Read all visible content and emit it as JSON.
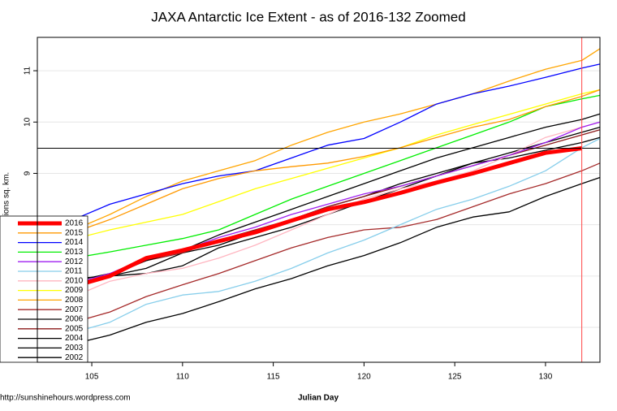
{
  "chart_data": {
    "type": "line",
    "title": "JAXA Antarctic Ice Extent - as of 2016-132 Zoomed",
    "xlabel": "Julian Day",
    "ylabel": "Millions sq. km.",
    "source": "http://sunshinehours.wordpress.com",
    "x": [
      102,
      104,
      106,
      108,
      110,
      112,
      114,
      116,
      118,
      120,
      122,
      124,
      126,
      128,
      130,
      132,
      133
    ],
    "xlim": [
      102,
      133
    ],
    "ylim": [
      5.32,
      11.65
    ],
    "xticks": [
      105,
      110,
      115,
      120,
      125,
      130
    ],
    "yticks": [
      6,
      7,
      8,
      9,
      10,
      11
    ],
    "grid": true,
    "legend": "bottom-left",
    "hline": 9.49,
    "vline": 132,
    "series": [
      {
        "name": "2016",
        "color": "#ff0000",
        "values": [
          6.54,
          6.8,
          7.0,
          7.35,
          7.5,
          7.68,
          7.85,
          8.08,
          8.3,
          8.44,
          8.62,
          8.82,
          9.0,
          9.2,
          9.4,
          9.49,
          null
        ]
      },
      {
        "name": "2015",
        "color": "#ff9900",
        "values": [
          7.7,
          7.85,
          8.1,
          8.4,
          8.7,
          8.9,
          9.05,
          9.13,
          9.2,
          9.33,
          9.5,
          9.7,
          9.9,
          10.05,
          10.3,
          10.5,
          10.63
        ]
      },
      {
        "name": "2014",
        "color": "#0000ff",
        "values": [
          7.87,
          8.1,
          8.4,
          8.6,
          8.8,
          8.95,
          9.05,
          9.3,
          9.55,
          9.68,
          10.0,
          10.35,
          10.55,
          10.7,
          10.87,
          11.05,
          11.13
        ]
      },
      {
        "name": "2013",
        "color": "#00ee00",
        "values": [
          7.15,
          7.35,
          7.47,
          7.6,
          7.73,
          7.9,
          8.2,
          8.5,
          8.75,
          9.0,
          9.25,
          9.5,
          9.75,
          10.0,
          10.3,
          10.45,
          10.52
        ]
      },
      {
        "name": "2012",
        "color": "#a020f0",
        "values": [
          6.55,
          6.85,
          7.05,
          7.35,
          7.5,
          7.75,
          7.95,
          8.2,
          8.4,
          8.6,
          8.75,
          8.95,
          9.15,
          9.35,
          9.6,
          9.9,
          10.0
        ]
      },
      {
        "name": "2011",
        "color": "#87ceeb",
        "values": [
          5.7,
          5.9,
          6.1,
          6.45,
          6.63,
          6.7,
          6.9,
          7.15,
          7.45,
          7.7,
          8.0,
          8.3,
          8.5,
          8.75,
          9.05,
          9.5,
          9.68
        ]
      },
      {
        "name": "2010",
        "color": "#ffb6c1",
        "values": [
          6.35,
          6.6,
          6.9,
          7.05,
          7.15,
          7.35,
          7.6,
          7.9,
          8.2,
          8.5,
          8.7,
          8.85,
          9.05,
          9.35,
          9.7,
          9.9,
          10.0
        ]
      },
      {
        "name": "2009",
        "color": "#ffff00",
        "values": [
          7.6,
          7.72,
          7.9,
          8.05,
          8.2,
          8.45,
          8.7,
          8.9,
          9.1,
          9.3,
          9.5,
          9.75,
          9.95,
          10.15,
          10.35,
          10.55,
          10.63
        ]
      },
      {
        "name": "2008",
        "color": "#ffa500",
        "values": [
          7.78,
          7.9,
          8.2,
          8.55,
          8.85,
          9.05,
          9.25,
          9.55,
          9.8,
          10.0,
          10.16,
          10.35,
          10.55,
          10.8,
          11.03,
          11.2,
          11.43
        ]
      },
      {
        "name": "2007",
        "color": "#a52a2a",
        "values": [
          5.95,
          6.1,
          6.3,
          6.6,
          6.83,
          7.05,
          7.3,
          7.55,
          7.75,
          7.9,
          7.95,
          8.1,
          8.35,
          8.6,
          8.8,
          9.05,
          9.2
        ]
      },
      {
        "name": "2006",
        "color": "#000000",
        "values": [
          6.75,
          6.9,
          7.05,
          7.3,
          7.5,
          7.8,
          8.05,
          8.3,
          8.55,
          8.8,
          9.05,
          9.3,
          9.5,
          9.7,
          9.9,
          10.05,
          10.16
        ]
      },
      {
        "name": "2005",
        "color": "#8b1a1a",
        "values": [
          6.6,
          6.85,
          7.0,
          7.3,
          7.45,
          7.7,
          7.9,
          8.1,
          8.35,
          8.55,
          8.75,
          8.95,
          9.15,
          9.35,
          9.55,
          9.75,
          9.85
        ]
      },
      {
        "name": "2004",
        "color": "#000000",
        "values": [
          6.7,
          6.85,
          7.0,
          7.05,
          7.2,
          7.55,
          7.75,
          7.95,
          8.2,
          8.45,
          8.7,
          8.95,
          9.2,
          9.4,
          9.6,
          9.8,
          9.9
        ]
      },
      {
        "name": "2003",
        "color": "#000000",
        "values": [
          6.85,
          6.95,
          7.0,
          7.15,
          7.45,
          7.6,
          7.85,
          8.1,
          8.35,
          8.55,
          8.8,
          9.0,
          9.2,
          9.3,
          9.45,
          9.6,
          9.7
        ]
      },
      {
        "name": "2002",
        "color": "#000000",
        "values": [
          5.52,
          5.68,
          5.85,
          6.1,
          6.27,
          6.5,
          6.75,
          6.95,
          7.2,
          7.4,
          7.65,
          7.95,
          8.15,
          8.25,
          8.55,
          8.8,
          8.92
        ]
      }
    ]
  }
}
